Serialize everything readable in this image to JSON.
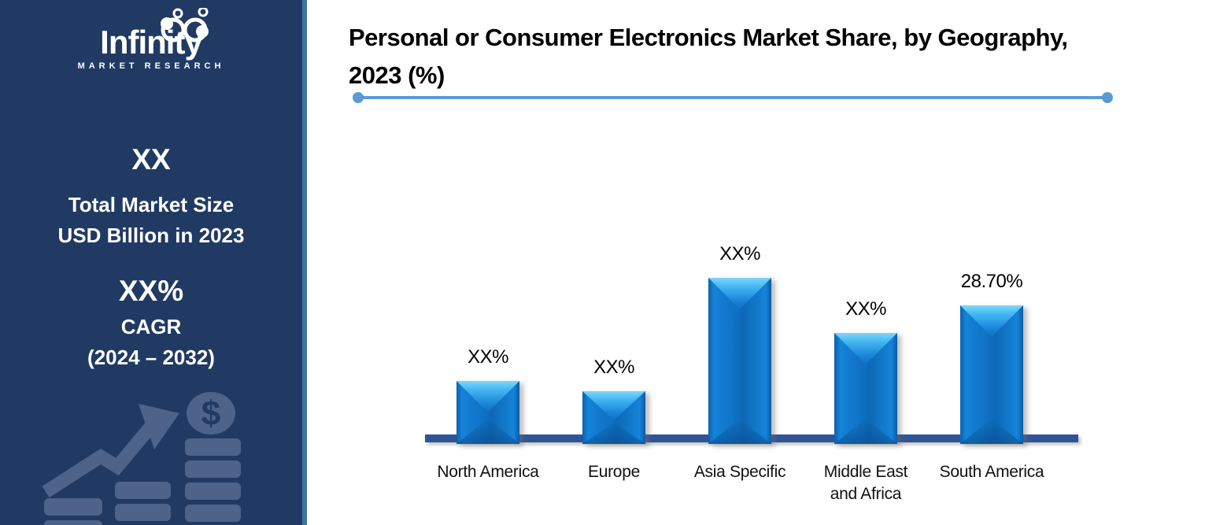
{
  "sidebar": {
    "logo": {
      "name": "Infinity",
      "tagline": "MARKET RESEARCH"
    },
    "market_size_value": "XX",
    "market_size_label_line1": "Total Market Size",
    "market_size_label_line2": "USD Billion in 2023",
    "cagr_value": "XX%",
    "cagr_label": "CAGR",
    "cagr_period": "(2024 – 2032)",
    "decoration": {
      "coin_symbol": "$"
    }
  },
  "header": {
    "title_line1": "Personal or Consumer Electronics Market Share, by Geography,",
    "title_line2": "2023 (%)"
  },
  "chart_data": {
    "type": "bar",
    "title": "Personal or Consumer Electronics Market Share, by Geography, 2023 (%)",
    "categories": [
      "North America",
      "Europe",
      "Asia Specific",
      "Middle East and Africa",
      "South America"
    ],
    "category_label_lines": [
      [
        "North America"
      ],
      [
        "Europe"
      ],
      [
        "Asia Specific"
      ],
      [
        "Middle East",
        "and Africa"
      ],
      [
        "South America"
      ]
    ],
    "series": [
      {
        "name": "Market share, 2023 (%)",
        "values": [
          11.9,
          9.6,
          34.8,
          22.6,
          28.7
        ]
      }
    ],
    "data_labels": [
      "XX%",
      "XX%",
      "XX%",
      "XX%",
      "28.70%"
    ],
    "ylim": [
      0,
      40
    ],
    "grid": false,
    "legend": false,
    "xlabel": "",
    "ylabel": ""
  },
  "colors": {
    "sidebar_bg": "#213A63",
    "accent_strip": "#41719C",
    "decoration": "#4D6389",
    "divider": "#5B9BD5",
    "baseline": "#2F5496",
    "bar_main": "#0F6FC2",
    "bar_highlight": "#7ED7FB",
    "title_text": "#000000",
    "sidebar_text": "#FFFFFF"
  }
}
